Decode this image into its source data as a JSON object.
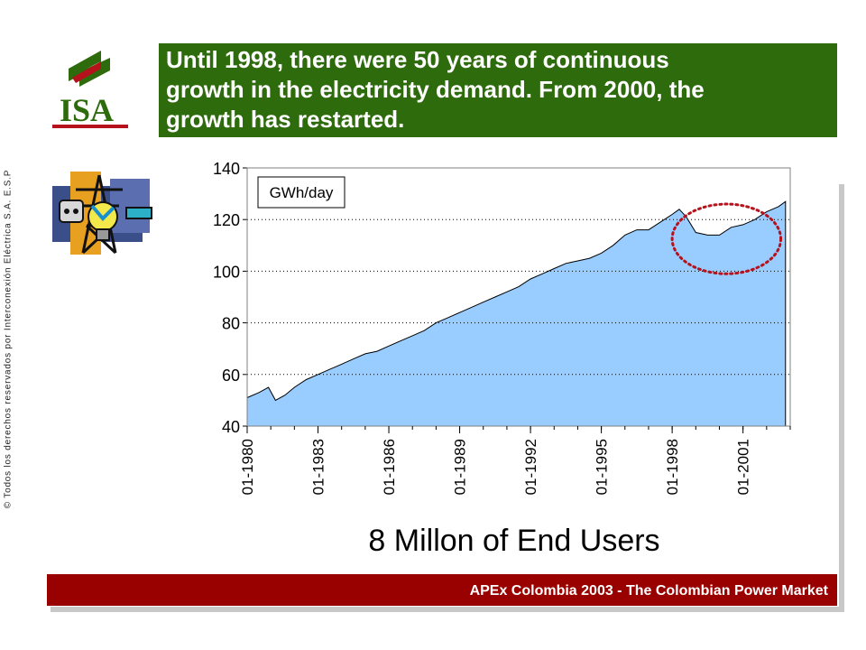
{
  "copyright": "© Todos los derechos reservados por Interconexión Eléctrica S.A. E.S.P",
  "logo": {
    "text": "ISA",
    "color": "#2e6b0c",
    "accent": "#b5121b"
  },
  "headline": {
    "line1": "Until 1998, there were 50 years of continuous",
    "line2": "growth in the electricity demand.  From 2000, the",
    "line3": "growth has restarted."
  },
  "subtitle": "8 Millon of End Users",
  "footer": "APEx Colombia 2003 - The Colombian Power Market",
  "colors": {
    "header_bg": "#2e6b0c",
    "footer_bg": "#990000",
    "area_fill": "#99ccff",
    "highlight": "#b5121b"
  },
  "chart_data": {
    "type": "area",
    "legend_label": "GWh/day",
    "ylim": [
      40,
      140
    ],
    "yticks": [
      40,
      60,
      80,
      100,
      120,
      140
    ],
    "xlim": [
      1980.0,
      2003.0
    ],
    "xtick_labels": [
      "01-1980",
      "01-1983",
      "01-1986",
      "01-1989",
      "01-1992",
      "01-1995",
      "01-1998",
      "01-2001"
    ],
    "xtick_values": [
      1980,
      1983,
      1986,
      1989,
      1992,
      1995,
      1998,
      2001
    ],
    "grid": "horizontal dotted",
    "highlight_region": {
      "x": [
        1998.0,
        2002.6
      ],
      "y": [
        99,
        126
      ]
    },
    "series": [
      {
        "x": [
          1980.0,
          1980.5,
          1980.9,
          1981.2,
          1981.6,
          1982.0,
          1982.5,
          1983.0,
          1983.5,
          1984.0,
          1984.5,
          1985.0,
          1985.5,
          1986.0,
          1986.5,
          1987.0,
          1987.5,
          1988.0,
          1988.5,
          1989.0,
          1989.5,
          1990.0,
          1990.5,
          1991.0,
          1991.5,
          1992.0,
          1992.5,
          1993.0,
          1993.5,
          1994.0,
          1994.5,
          1995.0,
          1995.5,
          1996.0,
          1996.5,
          1997.0,
          1997.5,
          1998.0,
          1998.3,
          1998.6,
          1999.0,
          1999.5,
          2000.0,
          2000.5,
          2001.0,
          2001.5,
          2002.0,
          2002.5,
          2002.8
        ],
        "values": [
          51,
          53,
          55,
          50,
          52,
          55,
          58,
          60,
          62,
          64,
          66,
          68,
          69,
          71,
          73,
          75,
          77,
          80,
          82,
          84,
          86,
          88,
          90,
          92,
          94,
          97,
          99,
          101,
          103,
          104,
          105,
          107,
          110,
          114,
          116,
          116,
          119,
          122,
          124,
          121,
          115,
          114,
          114,
          117,
          118,
          120,
          123,
          125,
          127
        ]
      }
    ]
  }
}
